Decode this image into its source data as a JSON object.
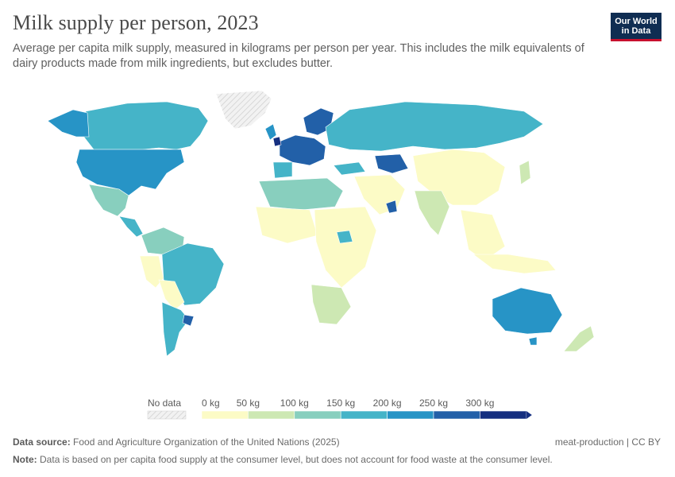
{
  "title": "Milk supply per person, 2023",
  "subtitle": "Average per capita milk supply, measured in kilograms per person per year. This includes the milk equivalents of dairy products made from milk ingredients, but excludes butter.",
  "logo": {
    "line1": "Our World",
    "line2": "in Data"
  },
  "legend": {
    "no_data_label": "No data",
    "bins": [
      {
        "label": "0 kg",
        "color": "#fcfbc6"
      },
      {
        "label": "50 kg",
        "color": "#cde8b3"
      },
      {
        "label": "100 kg",
        "color": "#88cfbe"
      },
      {
        "label": "150 kg",
        "color": "#45b4c8"
      },
      {
        "label": "200 kg",
        "color": "#2794c6"
      },
      {
        "label": "250 kg",
        "color": "#2260a8"
      },
      {
        "label": "300 kg",
        "color": "#152f80"
      }
    ]
  },
  "footer": {
    "source_label": "Data source:",
    "source_text": "Food and Agriculture Organization of the United Nations (2025)",
    "note_label": "Note:",
    "note_text": "Data is based on per capita food supply at the consumer level, but does not account for food waste at the consumer level.",
    "right_text": "meat-production | CC BY"
  },
  "colors": {
    "no_data": "#e8e8e8",
    "bin_0_50": "#fcfbc6",
    "bin_50_100": "#cde8b3",
    "bin_100_150": "#88cfbe",
    "bin_150_200": "#45b4c8",
    "bin_200_250": "#2794c6",
    "bin_250_300": "#2260a8",
    "bin_300_plus": "#152f80"
  }
}
